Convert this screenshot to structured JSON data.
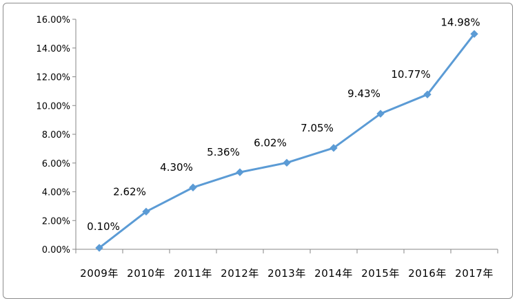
{
  "chart_data": {
    "type": "line",
    "title": "",
    "xlabel": "",
    "ylabel": "",
    "categories": [
      "2009年",
      "2010年",
      "2011年",
      "2012年",
      "2013年",
      "2014年",
      "2015年",
      "2016年",
      "2017年"
    ],
    "series": [
      {
        "values": [
          0.1,
          2.62,
          4.3,
          5.36,
          6.02,
          7.05,
          9.43,
          10.77,
          14.98
        ]
      }
    ],
    "data_labels": [
      "0.10%",
      "2.62%",
      "4.30%",
      "5.36%",
      "6.02%",
      "7.05%",
      "9.43%",
      "10.77%",
      "14.98%"
    ],
    "ylim": [
      0,
      16
    ],
    "y_ticks": [
      "0.00%",
      "2.00%",
      "4.00%",
      "6.00%",
      "8.00%",
      "10.00%",
      "12.00%",
      "14.00%",
      "16.00%"
    ],
    "grid": false,
    "legend": "none",
    "line_color": "#5b9bd5",
    "marker": "diamond"
  }
}
